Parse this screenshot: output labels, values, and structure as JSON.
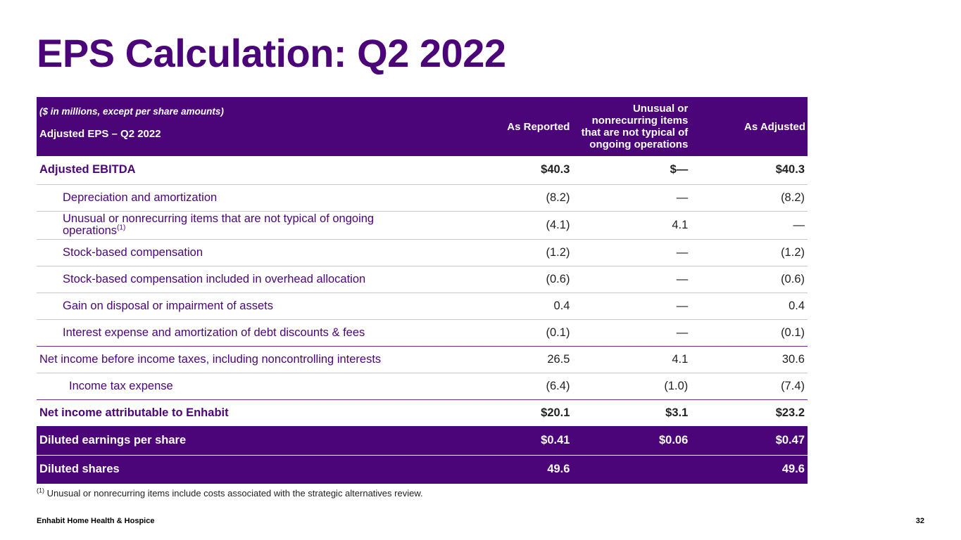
{
  "title": "EPS Calculation: Q2 2022",
  "table": {
    "units_note": "($ in millions, except per share amounts)",
    "header": {
      "label": "Adjusted EPS – Q2 2022",
      "col_reported": "As Reported",
      "col_unusual": [
        "Unusual or",
        "nonrecurring items",
        "that are not typical of",
        "ongoing operations"
      ],
      "col_adjusted": "As Adjusted"
    },
    "rows": [
      {
        "label": "Adjusted EBITDA",
        "reported": "$40.3",
        "unusual": "$—",
        "adjusted": "$40.3"
      },
      {
        "label": "Depreciation and amortization",
        "reported": "(8.2)",
        "unusual": "—",
        "adjusted": "(8.2)"
      },
      {
        "label_line1": "Unusual or nonrecurring items that are not typical of ongoing",
        "label_line2": "operations",
        "label_sup": "(1)",
        "reported": "(4.1)",
        "unusual": "4.1",
        "adjusted": "—"
      },
      {
        "label": "Stock-based compensation",
        "reported": "(1.2)",
        "unusual": "—",
        "adjusted": "(1.2)"
      },
      {
        "label": "Stock-based compensation included in overhead allocation",
        "reported": "(0.6)",
        "unusual": "—",
        "adjusted": "(0.6)"
      },
      {
        "label": "Gain on disposal or impairment of assets",
        "reported": "0.4",
        "unusual": "—",
        "adjusted": "0.4"
      },
      {
        "label": "Interest expense and amortization of debt discounts & fees",
        "reported": "(0.1)",
        "unusual": "—",
        "adjusted": "(0.1)"
      },
      {
        "label": "Net income before income taxes, including noncontrolling interests",
        "reported": "26.5",
        "unusual": "4.1",
        "adjusted": "30.6"
      },
      {
        "label": "Income tax expense",
        "reported": "(6.4)",
        "unusual": "(1.0)",
        "adjusted": "(7.4)"
      },
      {
        "label": "Net income attributable to Enhabit",
        "reported": "$20.1",
        "unusual": "$3.1",
        "adjusted": "$23.2"
      },
      {
        "label": "Diluted earnings per share",
        "reported": "$0.41",
        "unusual": "$0.06",
        "adjusted": "$0.47"
      },
      {
        "label": "Diluted shares",
        "reported": "49.6",
        "unusual": "",
        "adjusted": "49.6"
      }
    ]
  },
  "footnote": {
    "marker": "(1)",
    "text": "Unusual or nonrecurring items include costs associated with the strategic alternatives review."
  },
  "footer": {
    "company": "Enhabit Home Health & Hospice",
    "page_number": "32"
  },
  "colors": {
    "brand_purple": "#4b0578"
  }
}
